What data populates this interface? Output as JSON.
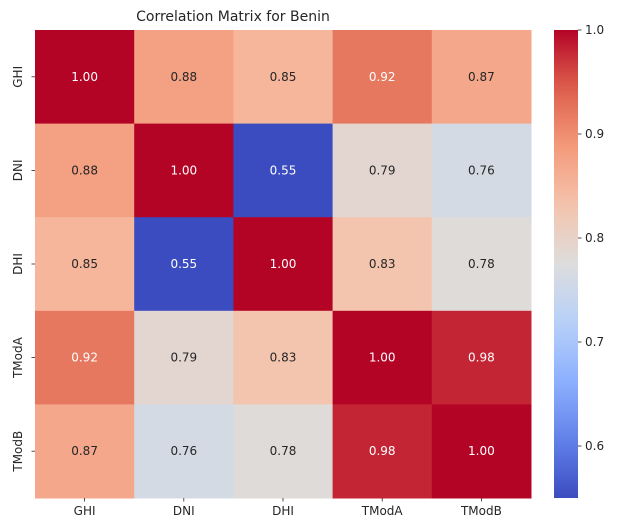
{
  "chart_data": {
    "type": "heatmap",
    "title": "Correlation Matrix for Benin",
    "x_labels": [
      "GHI",
      "DNI",
      "DHI",
      "TModA",
      "TModB"
    ],
    "y_labels": [
      "GHI",
      "DNI",
      "DHI",
      "TModA",
      "TModB"
    ],
    "values": [
      [
        1.0,
        0.88,
        0.85,
        0.92,
        0.87
      ],
      [
        0.88,
        1.0,
        0.55,
        0.79,
        0.76
      ],
      [
        0.85,
        0.55,
        1.0,
        0.83,
        0.78
      ],
      [
        0.92,
        0.79,
        0.83,
        1.0,
        0.98
      ],
      [
        0.87,
        0.76,
        0.78,
        0.98,
        1.0
      ]
    ],
    "value_format": "2 decimals",
    "colormap": "coolwarm",
    "colorbar": {
      "range": [
        0.55,
        1.0
      ],
      "ticks": [
        0.6,
        0.7,
        0.8,
        0.9,
        1.0
      ],
      "tick_labels": [
        "0.6",
        "0.7",
        "0.8",
        "0.9",
        "1.0"
      ]
    }
  }
}
